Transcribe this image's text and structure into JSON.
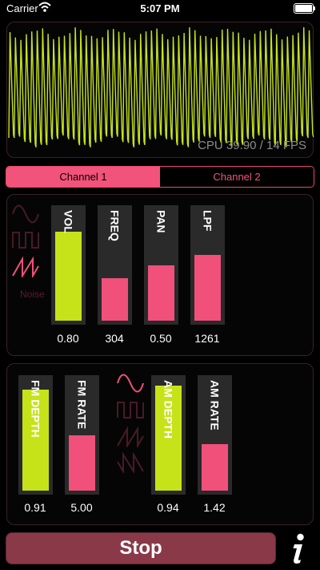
{
  "status_bar": {
    "carrier": "Carrier",
    "time": "5:07 PM"
  },
  "scope": {
    "cpu_text": "CPU 39.90 / 14 FPS"
  },
  "tabs": [
    {
      "label": "Channel 1",
      "active": true
    },
    {
      "label": "Channel 2",
      "active": false
    }
  ],
  "channel1": {
    "waveforms": [
      {
        "name": "sine-wave-icon",
        "selected": false
      },
      {
        "name": "square-wave-icon",
        "selected": false
      },
      {
        "name": "sawtooth-wave-icon",
        "selected": true
      }
    ],
    "noise_label": "Noise",
    "sliders": [
      {
        "label": "VOL",
        "value_text": "0.80",
        "level": 0.8,
        "color": "#c6e319"
      },
      {
        "label": "FREQ",
        "value_text": "304",
        "level": 0.38,
        "color": "#f0507a"
      },
      {
        "label": "PAN",
        "value_text": "0.50",
        "level": 0.5,
        "color": "#f0507a"
      },
      {
        "label": "LPF",
        "value_text": "1261",
        "level": 0.59,
        "color": "#f0507a"
      }
    ]
  },
  "channel2": {
    "fm_sliders": [
      {
        "label": "FM DEPTH",
        "value_text": "0.91",
        "level": 0.91,
        "color": "#c6e319"
      },
      {
        "label": "FM RATE",
        "value_text": "5.00",
        "level": 0.5,
        "color": "#f0507a"
      }
    ],
    "waveforms": [
      {
        "name": "sine-wave-icon",
        "selected": true
      },
      {
        "name": "square-wave-icon",
        "selected": false
      },
      {
        "name": "sawtooth-wave-icon",
        "selected": false
      },
      {
        "name": "reverse-sawtooth-wave-icon",
        "selected": false
      }
    ],
    "am_sliders": [
      {
        "label": "AM DEPTH",
        "value_text": "0.94",
        "level": 0.94,
        "color": "#c6e319"
      },
      {
        "label": "AM RATE",
        "value_text": "1.42",
        "level": 0.42,
        "color": "#f0507a"
      }
    ]
  },
  "stop_label": "Stop",
  "colors": {
    "accent": "#f2537a",
    "green": "#c6e319",
    "stop_button": "#8a3948"
  }
}
